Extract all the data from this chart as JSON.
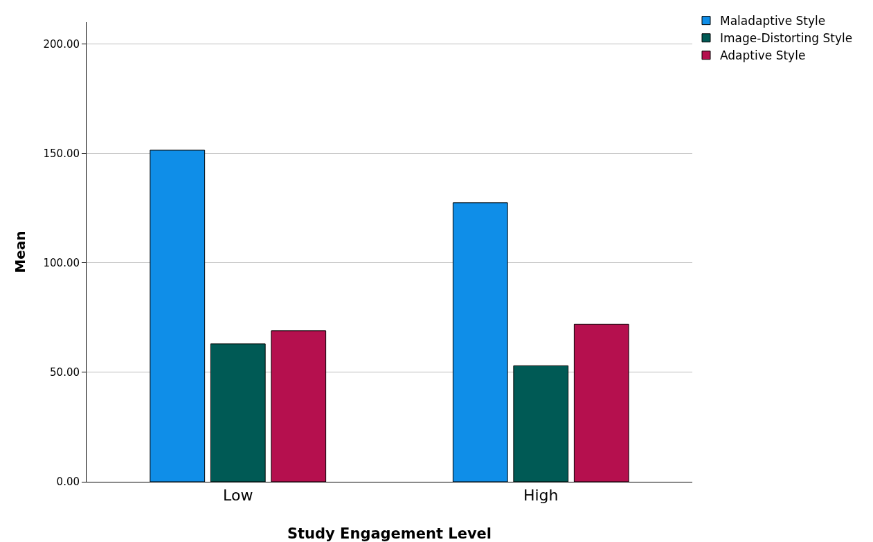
{
  "chart_data": {
    "type": "bar",
    "xlabel": "Study Engagement Level",
    "ylabel": "Mean",
    "categories": [
      "Low",
      "High"
    ],
    "series": [
      {
        "name": "Maladaptive Style",
        "color": "#0f8ee8",
        "values": [
          151.5,
          127.5
        ]
      },
      {
        "name": "Image-Distorting Style",
        "color": "#005a55",
        "values": [
          63,
          53
        ]
      },
      {
        "name": "Adaptive Style",
        "color": "#b5104e",
        "values": [
          69,
          72
        ]
      }
    ],
    "ylim": [
      0,
      210
    ],
    "yticks": [
      {
        "value": 0,
        "label": "0.00"
      },
      {
        "value": 50,
        "label": "50.00"
      },
      {
        "value": 100,
        "label": "100.00"
      },
      {
        "value": 150,
        "label": "150.00"
      },
      {
        "value": 200,
        "label": "200.00"
      }
    ],
    "grid": "y",
    "legend": "top right"
  }
}
